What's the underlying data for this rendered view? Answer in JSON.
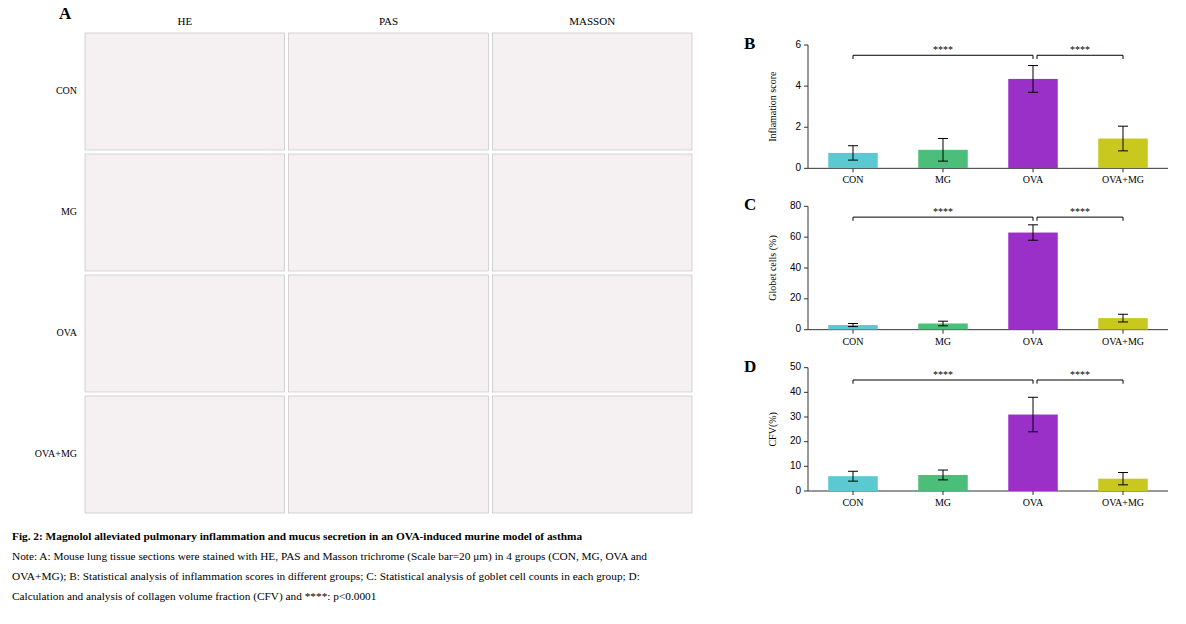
{
  "chart_data": [
    {
      "type": "image_grid",
      "title": "A",
      "categories": [
        "HE",
        "PAS",
        "MASSON"
      ],
      "row_labels": [
        "CON",
        "MG",
        "OVA",
        "OVA+MG"
      ]
    },
    {
      "type": "bar",
      "title": "B",
      "categories": [
        "CON",
        "MG",
        "OVA",
        "OVA+MG"
      ],
      "values": [
        0.75,
        0.9,
        4.35,
        1.45
      ],
      "errors": [
        0.35,
        0.55,
        0.65,
        0.6
      ],
      "ylabel": "Inflamation score",
      "ylim": [
        0,
        6
      ],
      "yticks": [
        0,
        2,
        4,
        6
      ],
      "colors": [
        "#5BC8D2",
        "#4BBF7A",
        "#9B30C8",
        "#C8C81E"
      ],
      "grid": false,
      "annotations": [
        {
          "from": "CON",
          "to": "OVA",
          "y": 5.5,
          "label": "****"
        },
        {
          "from": "OVA",
          "to": "OVA+MG",
          "y": 5.5,
          "label": "****"
        }
      ]
    },
    {
      "type": "bar",
      "title": "C",
      "categories": [
        "CON",
        "MG",
        "OVA",
        "OVA+MG"
      ],
      "values": [
        3.0,
        4.0,
        63.0,
        7.5
      ],
      "errors": [
        1.0,
        1.5,
        5.0,
        2.5
      ],
      "ylabel": "Globet cells (%)",
      "ylim": [
        0,
        80
      ],
      "yticks": [
        0,
        20,
        40,
        60,
        80
      ],
      "colors": [
        "#5BC8D2",
        "#4BBF7A",
        "#9B30C8",
        "#C8C81E"
      ],
      "grid": false,
      "annotations": [
        {
          "from": "CON",
          "to": "OVA",
          "y": 73,
          "label": "****"
        },
        {
          "from": "OVA",
          "to": "OVA+MG",
          "y": 73,
          "label": "****"
        }
      ]
    },
    {
      "type": "bar",
      "title": "D",
      "categories": [
        "CON",
        "MG",
        "OVA",
        "OVA+MG"
      ],
      "values": [
        6.0,
        6.5,
        31.0,
        5.0
      ],
      "errors": [
        2.0,
        2.0,
        7.0,
        2.5
      ],
      "ylabel": "CFV(%)",
      "ylim": [
        0,
        50
      ],
      "yticks": [
        0,
        10,
        20,
        30,
        40,
        50
      ],
      "colors": [
        "#5BC8D2",
        "#4BBF7A",
        "#9B30C8",
        "#C8C81E"
      ],
      "grid": false,
      "annotations": [
        {
          "from": "CON",
          "to": "OVA",
          "y": 45,
          "label": "****"
        },
        {
          "from": "OVA",
          "to": "OVA+MG",
          "y": 45,
          "label": "****"
        }
      ]
    }
  ],
  "caption": [
    "Fig. 2: Magnolol alleviated pulmonary inflammation and mucus secretion in an OVA-induced murine model of asthma",
    "Note: A: Mouse lung tissue sections were stained with HE, PAS and Masson trichrome (Scale bar=20 μm) in 4 groups (CON, MG, OVA and",
    "OVA+MG); B: Statistical analysis of inflammation scores in different groups; C: Statistical analysis of goblet cell counts in each group; D:",
    "Calculation and analysis of collagen volume fraction (CFV) and ****: p<0.0001"
  ]
}
